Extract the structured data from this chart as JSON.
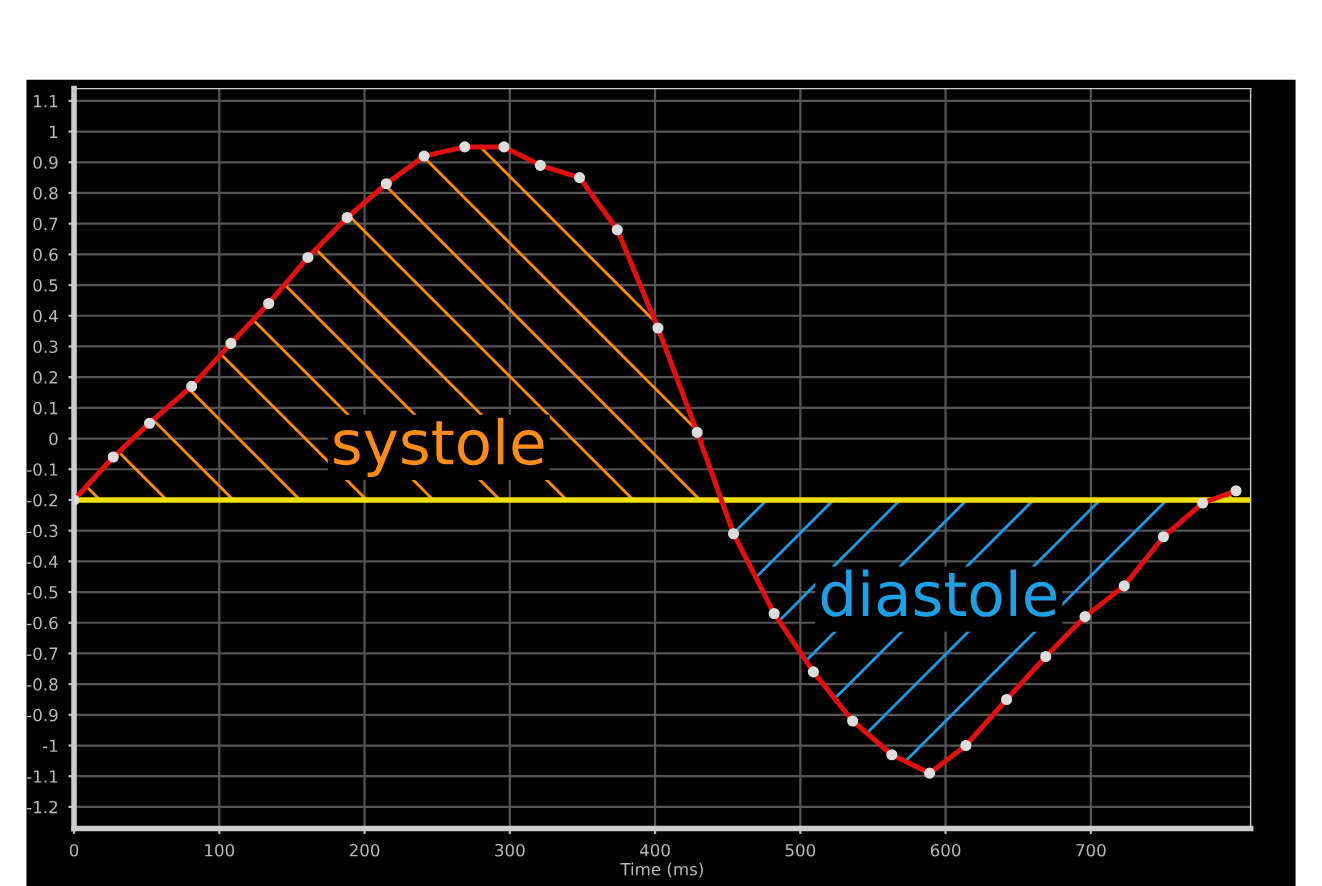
{
  "chart_data": {
    "type": "line",
    "xlabel": "Time (ms)",
    "x": [
      0,
      27,
      52,
      81,
      108,
      134,
      161,
      188,
      215,
      241,
      269,
      296,
      321,
      348,
      374,
      402,
      429,
      454,
      482,
      509,
      536,
      563,
      589,
      614,
      642,
      669,
      696,
      723,
      750,
      777,
      800
    ],
    "series": [
      {
        "color": "#e01010",
        "values": [
          -0.2,
          -0.06,
          0.05,
          0.17,
          0.31,
          0.44,
          0.59,
          0.72,
          0.83,
          0.92,
          0.95,
          0.95,
          0.89,
          0.85,
          0.68,
          0.36,
          0.02,
          -0.31,
          -0.57,
          -0.76,
          -0.92,
          -1.03,
          -1.09,
          -1.0,
          -0.85,
          -0.71,
          -0.58,
          -0.48,
          -0.32,
          -0.21,
          -0.17
        ]
      }
    ],
    "marker": "circle",
    "line_style": "solid",
    "grid": true,
    "xlim": [
      0,
      810
    ],
    "xticks": [
      0,
      100,
      200,
      300,
      400,
      500,
      600,
      700
    ],
    "ylim": [
      -1.27,
      1.14
    ],
    "yticks": [
      -1.2,
      -1.1,
      -1,
      -0.9,
      -0.8,
      -0.7,
      -0.6,
      -0.5,
      -0.4,
      -0.3,
      -0.2,
      -0.1,
      0,
      0.1,
      0.2,
      0.3,
      0.4,
      0.5,
      0.6,
      0.7,
      0.8,
      0.9,
      1,
      1.1
    ],
    "ref_lines": [
      {
        "axis": "y",
        "value": -0.2,
        "color": "#f0e000"
      }
    ],
    "annotations": [
      "systole",
      "diastole"
    ]
  }
}
